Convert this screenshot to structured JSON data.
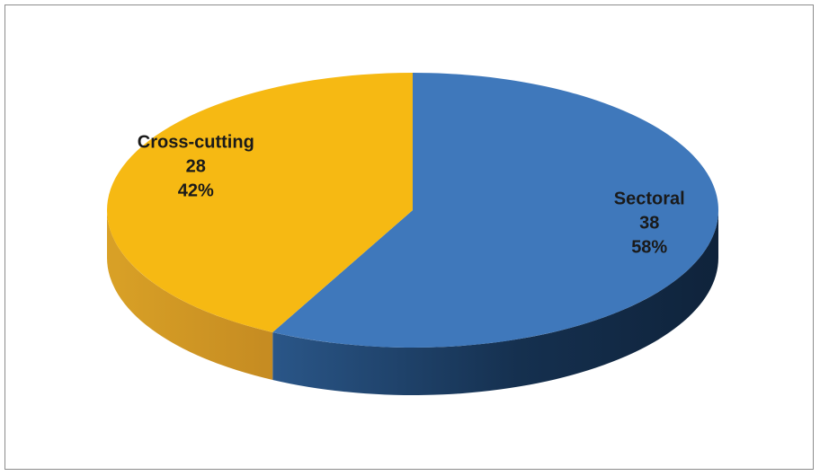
{
  "chart_data": {
    "type": "pie",
    "title": "",
    "slices": [
      {
        "label": "Sectoral",
        "value": 38,
        "percent": "58%",
        "color": "#3f78bb",
        "shade_color": "#1b355a"
      },
      {
        "label": "Cross-cutting",
        "value": 28,
        "percent": "42%",
        "color": "#f6b913",
        "shade_color": "#c99122"
      }
    ],
    "three_d": true,
    "legend": "none",
    "data_labels": "inside"
  }
}
